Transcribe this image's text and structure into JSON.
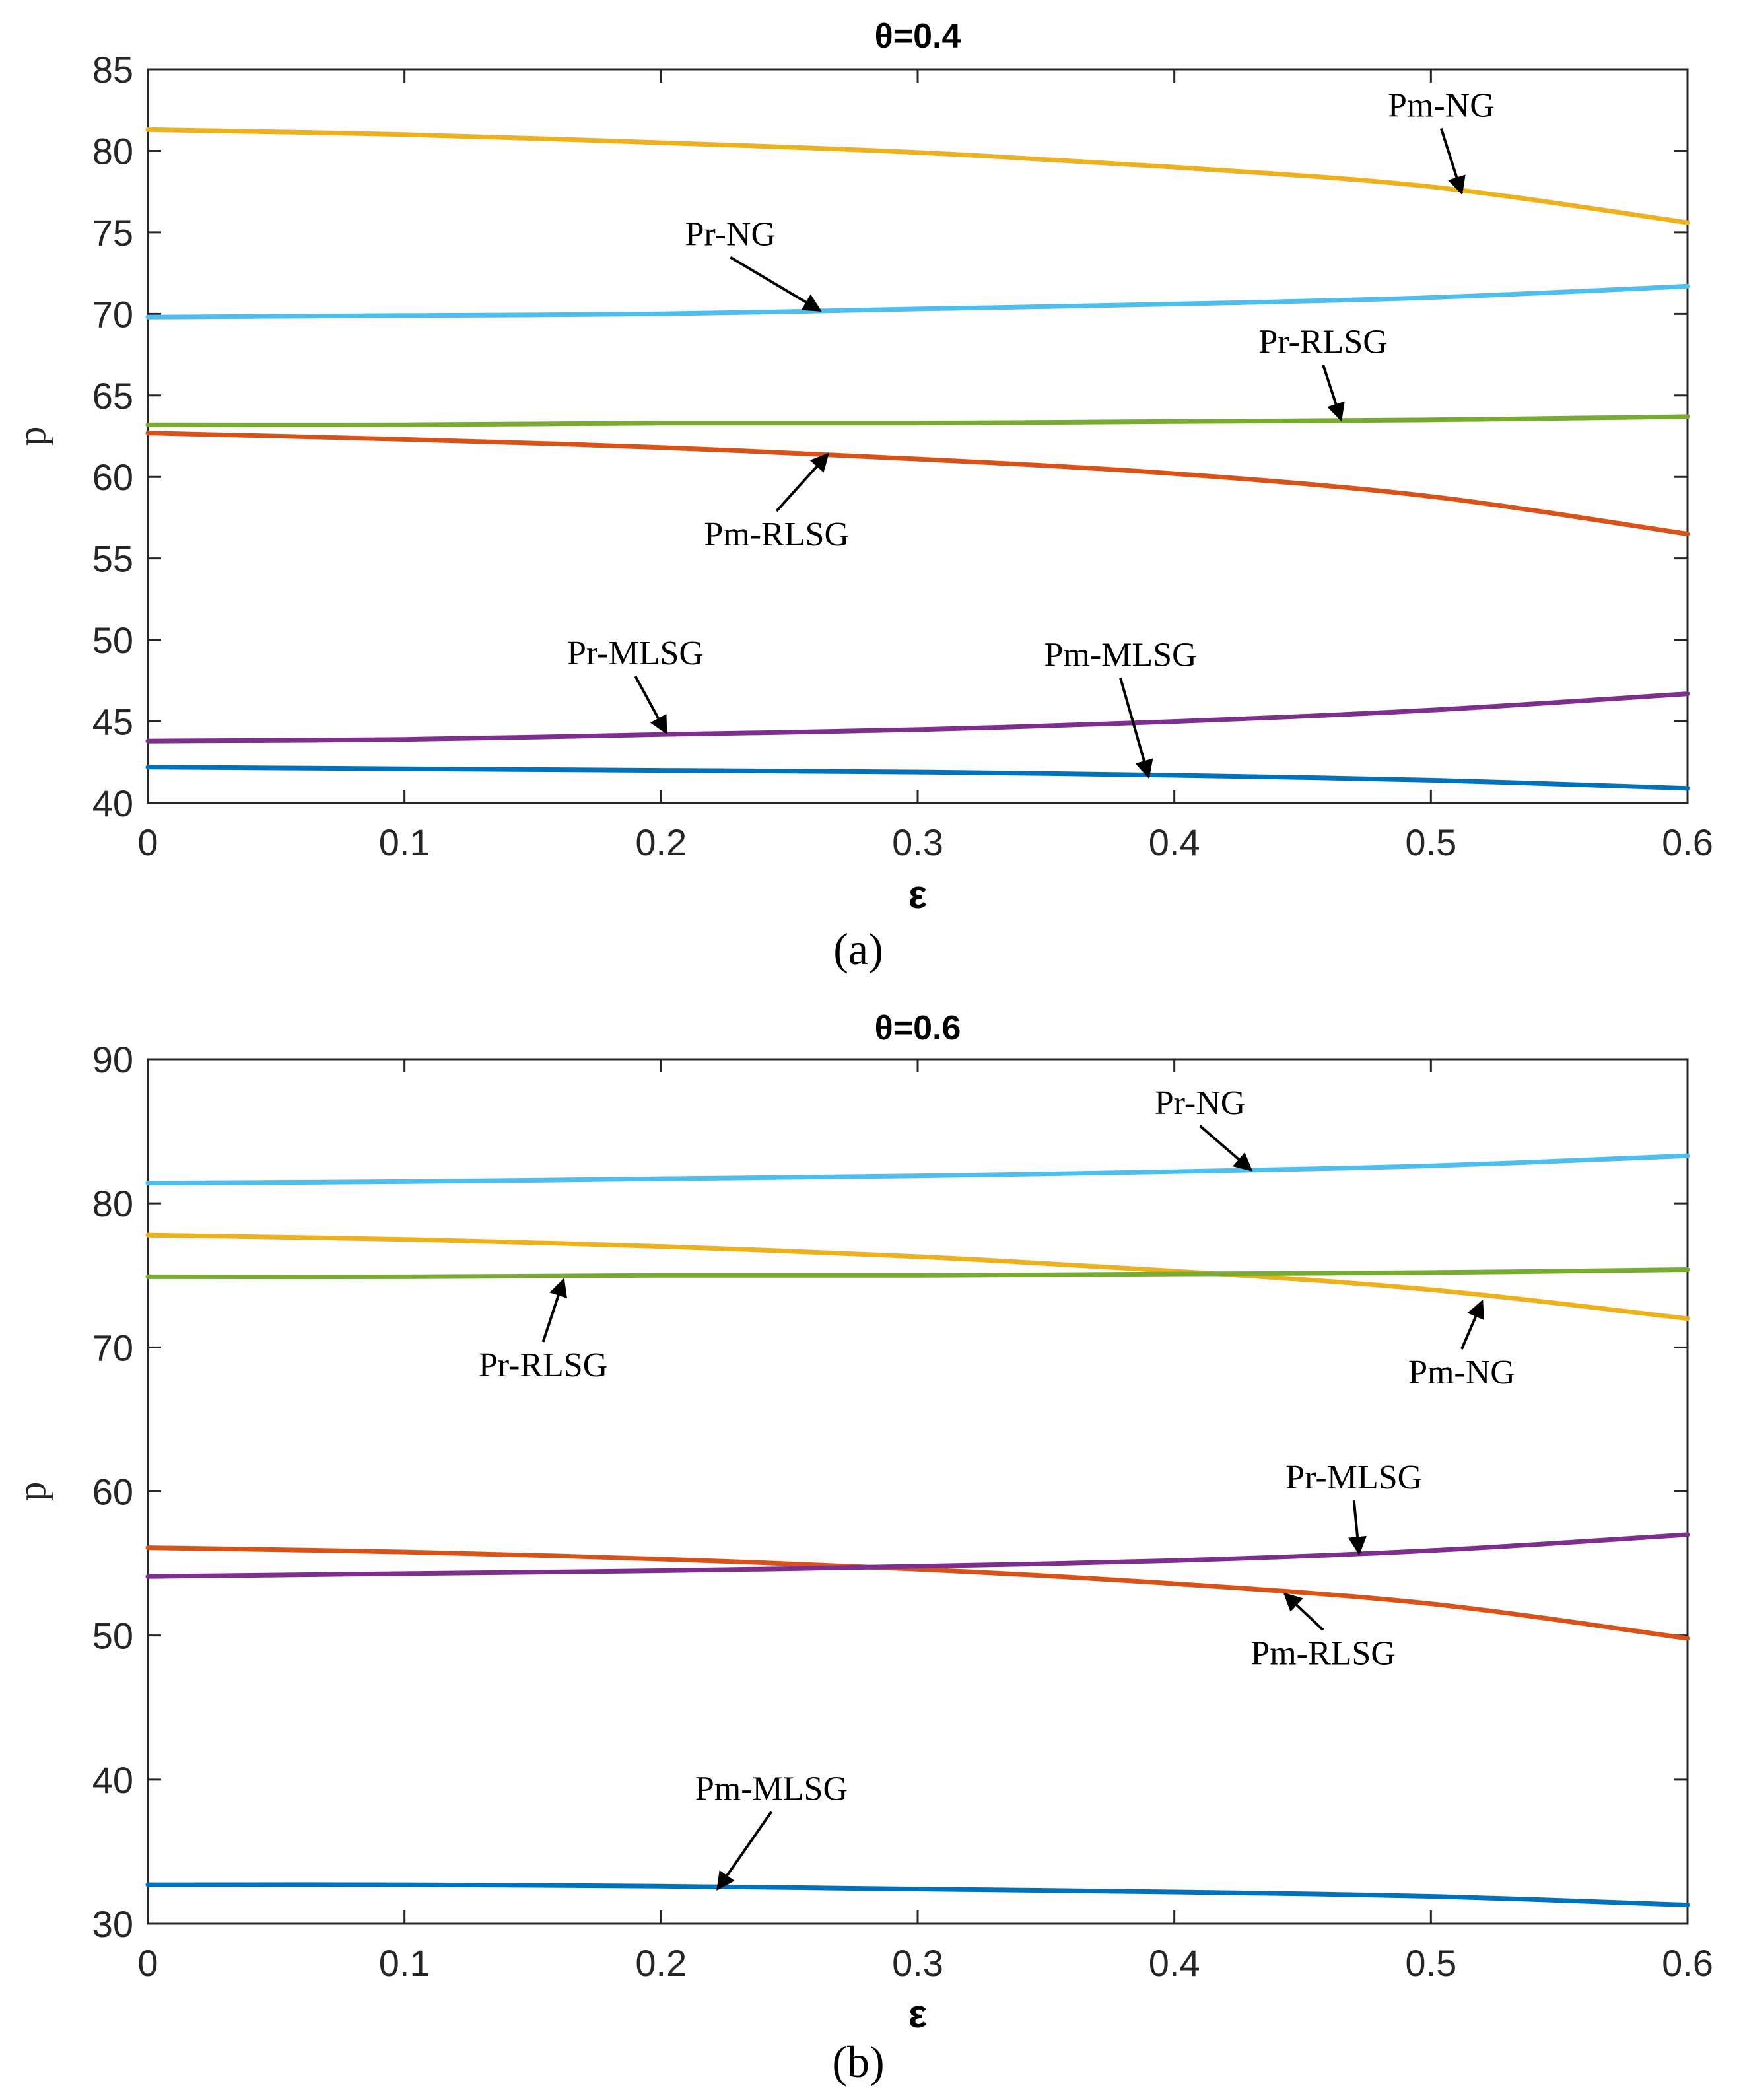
{
  "colors": {
    "Pm-NG": "#EDB120",
    "Pr-NG": "#4DBEEE",
    "Pr-RLSG": "#77AC30",
    "Pm-RLSG": "#D95319",
    "Pr-MLSG": "#7E2F8E",
    "Pm-MLSG": "#0072BD"
  },
  "chart_data": [
    {
      "type": "line",
      "title": "θ=0.4",
      "subfigure_label": "(a)",
      "xlabel": "ε",
      "ylabel": "p",
      "xlim": [
        0,
        0.6
      ],
      "ylim": [
        40,
        85
      ],
      "xticks": [
        0,
        0.1,
        0.2,
        0.3,
        0.4,
        0.5,
        0.6
      ],
      "xtick_labels": [
        "0",
        "0.1",
        "0.2",
        "0.3",
        "0.4",
        "0.5",
        "0.6"
      ],
      "yticks": [
        40,
        45,
        50,
        55,
        60,
        65,
        70,
        75,
        80,
        85
      ],
      "ytick_labels": [
        "40",
        "45",
        "50",
        "55",
        "60",
        "65",
        "70",
        "75",
        "80",
        "85"
      ],
      "grid": false,
      "x": [
        0,
        0.1,
        0.2,
        0.3,
        0.4,
        0.5,
        0.6
      ],
      "series": [
        {
          "name": "Pm-NG",
          "values": [
            81.3,
            81.0,
            80.5,
            79.9,
            79.0,
            77.8,
            75.6
          ]
        },
        {
          "name": "Pr-NG",
          "values": [
            69.8,
            69.9,
            70.0,
            70.3,
            70.6,
            71.0,
            71.7
          ]
        },
        {
          "name": "Pr-RLSG",
          "values": [
            63.2,
            63.2,
            63.3,
            63.3,
            63.4,
            63.5,
            63.7
          ]
        },
        {
          "name": "Pm-RLSG",
          "values": [
            62.7,
            62.3,
            61.8,
            61.1,
            60.2,
            58.8,
            56.5
          ]
        },
        {
          "name": "Pr-MLSG",
          "values": [
            43.8,
            43.9,
            44.2,
            44.5,
            45.0,
            45.7,
            46.7
          ]
        },
        {
          "name": "Pm-MLSG",
          "values": [
            42.2,
            42.1,
            42.0,
            41.9,
            41.7,
            41.4,
            40.9
          ]
        }
      ],
      "annotations": [
        {
          "text": "Pm-NG",
          "x": 0.504,
          "y": 82.1,
          "target_x": 0.512,
          "target_y": 77.4
        },
        {
          "text": "Pr-NG",
          "x": 0.227,
          "y": 74.2,
          "target_x": 0.262,
          "target_y": 70.2
        },
        {
          "text": "Pr-RLSG",
          "x": 0.458,
          "y": 67.6,
          "target_x": 0.465,
          "target_y": 63.5
        },
        {
          "text": "Pm-RLSG",
          "x": 0.245,
          "y": 55.8,
          "target_x": 0.265,
          "target_y": 61.4
        },
        {
          "text": "Pr-MLSG",
          "x": 0.19,
          "y": 48.5,
          "target_x": 0.202,
          "target_y": 44.3
        },
        {
          "text": "Pm-MLSG",
          "x": 0.379,
          "y": 48.4,
          "target_x": 0.39,
          "target_y": 41.6
        }
      ]
    },
    {
      "type": "line",
      "title": "θ=0.6",
      "subfigure_label": "(b)",
      "xlabel": "ε",
      "ylabel": "p",
      "xlim": [
        0,
        0.6
      ],
      "ylim": [
        30,
        90
      ],
      "xticks": [
        0,
        0.1,
        0.2,
        0.3,
        0.4,
        0.5,
        0.6
      ],
      "xtick_labels": [
        "0",
        "0.1",
        "0.2",
        "0.3",
        "0.4",
        "0.5",
        "0.6"
      ],
      "yticks": [
        30,
        40,
        50,
        60,
        70,
        80,
        90
      ],
      "ytick_labels": [
        "30",
        "40",
        "50",
        "60",
        "70",
        "80",
        "90"
      ],
      "grid": false,
      "x": [
        0,
        0.1,
        0.2,
        0.3,
        0.4,
        0.5,
        0.6
      ],
      "series": [
        {
          "name": "Pr-NG",
          "values": [
            81.4,
            81.5,
            81.7,
            81.9,
            82.2,
            82.6,
            83.3
          ]
        },
        {
          "name": "Pm-NG",
          "values": [
            77.8,
            77.5,
            77.0,
            76.3,
            75.3,
            74.0,
            72.0
          ]
        },
        {
          "name": "Pr-RLSG",
          "values": [
            74.9,
            74.9,
            75.0,
            75.0,
            75.1,
            75.2,
            75.4
          ]
        },
        {
          "name": "Pm-RLSG",
          "values": [
            56.1,
            55.8,
            55.3,
            54.6,
            53.6,
            52.2,
            49.8
          ]
        },
        {
          "name": "Pr-MLSG",
          "values": [
            54.1,
            54.3,
            54.5,
            54.8,
            55.2,
            55.9,
            57.0
          ]
        },
        {
          "name": "Pm-MLSG",
          "values": [
            32.7,
            32.7,
            32.6,
            32.4,
            32.2,
            31.9,
            31.3
          ]
        }
      ],
      "annotations": [
        {
          "text": "Pr-NG",
          "x": 0.41,
          "y": 86.2,
          "target_x": 0.43,
          "target_y": 82.3
        },
        {
          "text": "Pm-NG",
          "x": 0.512,
          "y": 67.5,
          "target_x": 0.52,
          "target_y": 73.2
        },
        {
          "text": "Pr-RLSG",
          "x": 0.154,
          "y": 68.0,
          "target_x": 0.162,
          "target_y": 74.7
        },
        {
          "text": "Pr-MLSG",
          "x": 0.47,
          "y": 60.2,
          "target_x": 0.472,
          "target_y": 55.7
        },
        {
          "text": "Pm-RLSG",
          "x": 0.458,
          "y": 48.0,
          "target_x": 0.443,
          "target_y": 52.9
        },
        {
          "text": "Pm-MLSG",
          "x": 0.243,
          "y": 38.6,
          "target_x": 0.222,
          "target_y": 32.4
        }
      ]
    }
  ]
}
